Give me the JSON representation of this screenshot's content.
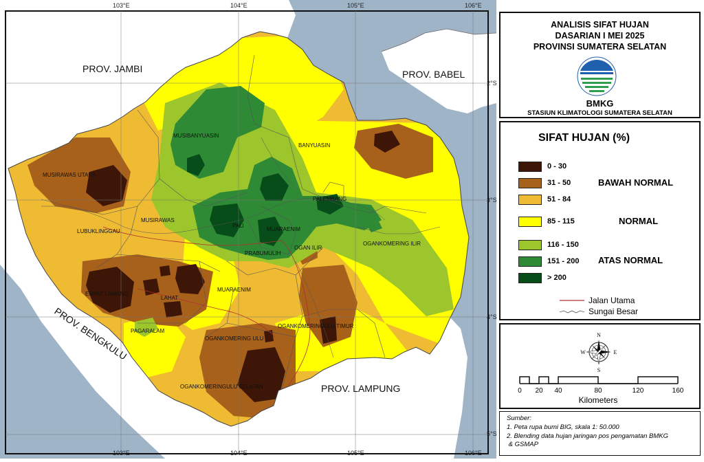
{
  "map": {
    "coords_top": [
      "103°E",
      "104°E",
      "105°E",
      "106°E"
    ],
    "coords_bottom": [
      "103°E",
      "104°E",
      "105°E",
      "106°E"
    ],
    "coords_right": [
      "2°S",
      "3°S",
      "4°S",
      "5°S"
    ],
    "provinces": [
      "PROV. JAMBI",
      "PROV. BABEL",
      "PROV. BENGKULU",
      "PROV. LAMPUNG"
    ],
    "regencies": [
      "MUSIBANYUASIN",
      "BANYUASIN",
      "MUSIRAWAS UTARA",
      "PALEMBANG",
      "LUBUKLINGGAU",
      "MUSIRAWAS",
      "PALI",
      "MUARAENIM",
      "OGAN ILIR",
      "OGANKOMERING ILIR",
      "PRABUMULIH",
      "EMPAT LAWANG",
      "LAHAT",
      "MUARAENIM",
      "OGANKOMERINGULU TIMUR",
      "PAGARALAM",
      "OGANKOMERING ULU",
      "OGANKOMERINGULU SELATAN"
    ]
  },
  "title": {
    "lines": [
      "ANALISIS SIFAT HUJAN",
      "DASARIAN I MEI 2025",
      "PROVINSI SUMATERA SELATAN"
    ],
    "logo_text": "BMKG",
    "station": "STASIUN KLIMATOLOGI SUMATERA SELATAN"
  },
  "legend": {
    "title": "SIFAT HUJAN (%)",
    "classes": [
      {
        "label": "0 - 30",
        "color": "#3d1608"
      },
      {
        "label": "31 - 50",
        "color": "#a8611a"
      },
      {
        "label": "51 - 84",
        "color": "#eebb33"
      },
      {
        "label": "85 - 115",
        "color": "#ffff00"
      },
      {
        "label": "116 - 150",
        "color": "#9cc62c"
      },
      {
        "label": "151 - 200",
        "color": "#2e8a34"
      },
      {
        "label": "> 200",
        "color": "#064d1a"
      }
    ],
    "categories": [
      "BAWAH NORMAL",
      "NORMAL",
      "ATAS NORMAL"
    ],
    "lines": [
      "Jalan Utama",
      "Sungai Besar"
    ],
    "road_color": "#b03030"
  },
  "compass": {
    "n": "N",
    "s": "S",
    "e": "E",
    "w": "W"
  },
  "scale": {
    "ticks": [
      "0",
      "20",
      "40",
      "80",
      "120",
      "160"
    ],
    "unit": "Kilometers"
  },
  "source": {
    "heading": "Sumber:",
    "lines": [
      "1. Peta rupa bumi BIG, skala 1: 50.000",
      "2. Blending data hujan jaringan pos pengamatan BMKG",
      " & GSMAP"
    ]
  }
}
